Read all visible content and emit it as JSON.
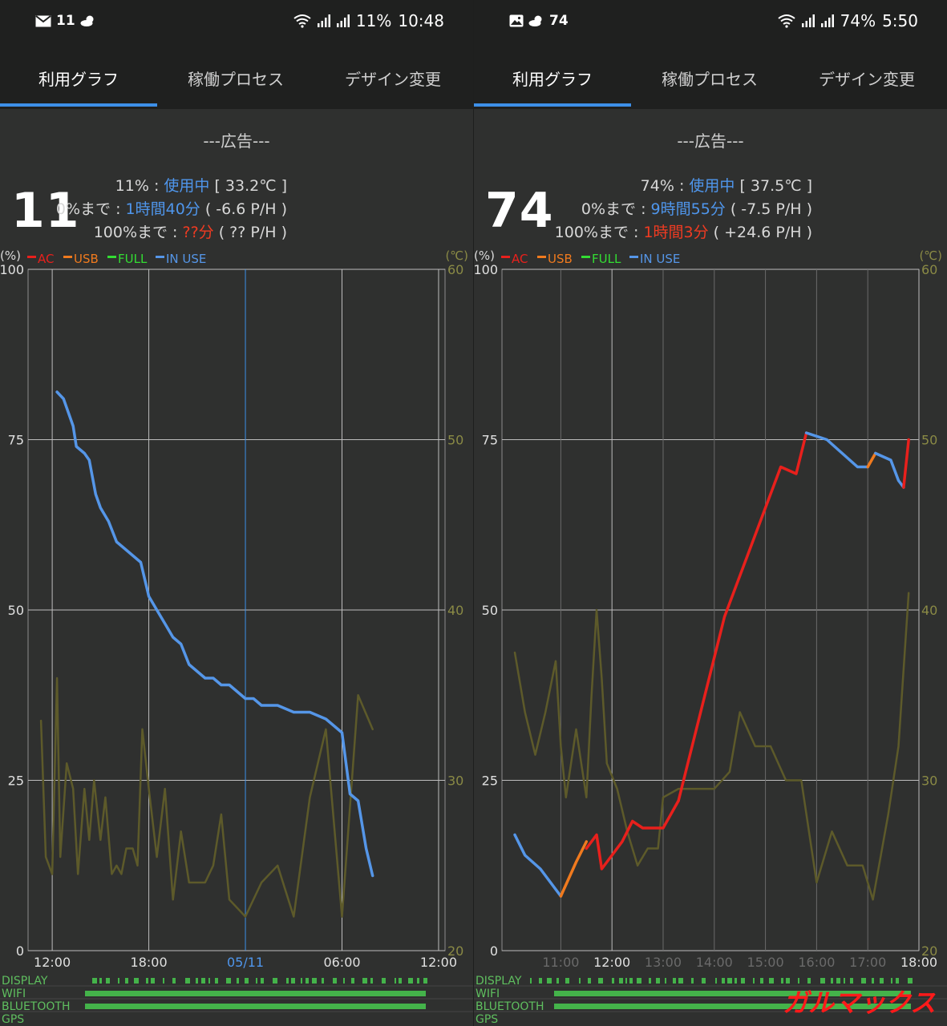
{
  "panels": [
    {
      "status": {
        "notif_count": "11",
        "battery": "11%",
        "time": "10:48"
      },
      "tabs": [
        "利用グラフ",
        "稼働プロセス",
        "デザイン変更"
      ],
      "ad": "---広告---",
      "level": "11",
      "info": {
        "line1": {
          "pct": "11%",
          "sep": " : ",
          "state": "使用中",
          "temp": " [ 33.2℃ ]"
        },
        "line2": {
          "label": "0%まで : ",
          "value": "1時間40分",
          "rate": " ( -6.6 P/H )"
        },
        "line3": {
          "label": "100%まで : ",
          "value": "??分",
          "rate": " ( ?? P/H )"
        }
      },
      "legend": {
        "left_unit": "(%)",
        "right_unit": "(℃)",
        "items": [
          "AC",
          "USB",
          "FULL",
          "IN USE"
        ]
      },
      "activity_labels": [
        "DISPLAY",
        "WIFI",
        "BLUETOOTH",
        "GPS"
      ]
    },
    {
      "status": {
        "notif_count": "74",
        "battery": "74%",
        "time": "5:50"
      },
      "tabs": [
        "利用グラフ",
        "稼働プロセス",
        "デザイン変更"
      ],
      "ad": "---広告---",
      "level": "74",
      "info": {
        "line1": {
          "pct": "74%",
          "sep": " : ",
          "state": "使用中",
          "temp": " [ 37.5℃ ]"
        },
        "line2": {
          "label": "0%まで : ",
          "value": "9時間55分",
          "rate": " ( -7.5 P/H )"
        },
        "line3": {
          "label": "100%まで : ",
          "value": "1時間3分",
          "rate": " ( +24.6 P/H )"
        }
      },
      "legend": {
        "left_unit": "(%)",
        "right_unit": "(℃)",
        "items": [
          "AC",
          "USB",
          "FULL",
          "IN USE"
        ]
      },
      "activity_labels": [
        "DISPLAY",
        "WIFI",
        "BLUETOOTH",
        "GPS"
      ]
    }
  ],
  "colors": {
    "ac": "#e8201c",
    "usb": "#f07a1e",
    "full": "#33dd33",
    "in_use": "#5596e8",
    "temp": "#5d5a2a",
    "grid": "#cfcfcf",
    "accent": "#3d8fe8"
  },
  "watermark": "ガルマックス",
  "chart_data": [
    {
      "type": "line",
      "ylim": [
        0,
        100
      ],
      "y2lim": [
        20,
        60
      ],
      "y_ticks": [
        "0",
        "25",
        "50",
        "75",
        "100"
      ],
      "y2_ticks": [
        "20",
        "30",
        "40",
        "50",
        "60"
      ],
      "x_ticks": [
        "12:00",
        "18:00",
        "05/11",
        "06:00",
        "12:00"
      ],
      "x_range_hours": [
        10,
        34
      ],
      "series": [
        {
          "name": "IN USE",
          "kind": "battery",
          "x": [
            12.3,
            12.7,
            13.0,
            13.3,
            13.5,
            14.0,
            14.3,
            14.7,
            15.0,
            15.5,
            16.0,
            16.5,
            17.0,
            17.5,
            18.0,
            18.5,
            19.0,
            19.5,
            20.0,
            20.5,
            21.0,
            21.5,
            22.0,
            22.5,
            23.0,
            23.5,
            24.0,
            24.5,
            25.0,
            26.0,
            27.0,
            28.0,
            29.0,
            29.5,
            30.0,
            30.5,
            31.0,
            31.5,
            31.9
          ],
          "y": [
            82,
            81,
            79,
            77,
            74,
            73,
            72,
            67,
            65,
            63,
            60,
            59,
            58,
            57,
            52,
            50,
            48,
            46,
            45,
            42,
            41,
            40,
            40,
            39,
            39,
            38,
            37,
            37,
            36,
            36,
            35,
            35,
            34,
            33,
            32,
            23,
            22,
            15,
            11
          ]
        },
        {
          "name": "温度",
          "kind": "temperature",
          "x": [
            11.3,
            11.6,
            12.0,
            12.3,
            12.5,
            12.9,
            13.3,
            13.6,
            14.0,
            14.3,
            14.6,
            15.0,
            15.3,
            15.7,
            16.0,
            16.3,
            16.6,
            17.0,
            17.3,
            17.6,
            18.0,
            18.5,
            19.0,
            19.5,
            20.0,
            20.5,
            21.0,
            21.5,
            22.0,
            22.5,
            23.0,
            24.0,
            25.0,
            26.0,
            27.0,
            28.0,
            29.0,
            30.0,
            31.0,
            31.9
          ],
          "y": [
            33.5,
            25.5,
            24.5,
            36,
            25.5,
            31,
            29.5,
            24.5,
            29.5,
            26.5,
            30,
            26.5,
            29,
            24.5,
            25,
            24.5,
            26,
            26,
            25,
            33,
            29.5,
            25.5,
            29.5,
            23,
            27,
            24,
            24,
            24,
            25,
            28,
            23,
            22,
            24,
            25,
            22,
            29,
            33,
            22,
            35,
            33
          ]
        }
      ]
    },
    {
      "type": "line",
      "ylim": [
        0,
        100
      ],
      "y2lim": [
        20,
        60
      ],
      "y_ticks": [
        "0",
        "25",
        "50",
        "75",
        "100"
      ],
      "y2_ticks": [
        "20",
        "30",
        "40",
        "50",
        "60"
      ],
      "x_ticks": [
        "11:00",
        "12:00",
        "13:00",
        "14:00",
        "15:00",
        "16:00",
        "17:00",
        "18:00"
      ],
      "x_range_hours": [
        10.1,
        18.0
      ],
      "series": [
        {
          "name": "IN USE",
          "kind": "battery",
          "x": [
            10.1,
            10.3,
            10.6,
            10.9,
            11.0
          ],
          "y": [
            17,
            14,
            12,
            9,
            8
          ]
        },
        {
          "name": "USB",
          "kind": "battery",
          "x": [
            11.0,
            11.3,
            11.5
          ],
          "y": [
            8,
            13,
            16
          ]
        },
        {
          "name": "AC",
          "kind": "battery",
          "x": [
            11.5,
            11.7,
            11.8,
            12.0,
            12.2,
            12.4,
            12.6,
            12.9,
            13.0,
            13.3
          ],
          "y": [
            15,
            17,
            12,
            14,
            16,
            19,
            18,
            18,
            18,
            22
          ]
        },
        {
          "name": "AC",
          "kind": "battery",
          "x": [
            13.3,
            14.2,
            14.8,
            15.3,
            15.6,
            15.8
          ],
          "y": [
            22,
            49,
            61,
            71,
            70,
            76
          ]
        },
        {
          "name": "IN USE",
          "kind": "battery",
          "x": [
            15.8,
            16.2,
            16.5,
            16.8,
            17.0
          ],
          "y": [
            76,
            75,
            73,
            71,
            71
          ]
        },
        {
          "name": "USB",
          "kind": "battery",
          "x": [
            17.0,
            17.15
          ],
          "y": [
            71,
            73
          ]
        },
        {
          "name": "IN USE",
          "kind": "battery",
          "x": [
            17.15,
            17.45,
            17.6,
            17.7
          ],
          "y": [
            73,
            72,
            69,
            68
          ]
        },
        {
          "name": "AC",
          "kind": "battery",
          "x": [
            17.7,
            17.8
          ],
          "y": [
            68,
            75
          ]
        },
        {
          "name": "温度",
          "kind": "temperature",
          "x": [
            10.1,
            10.3,
            10.5,
            10.7,
            10.9,
            11.0,
            11.1,
            11.3,
            11.5,
            11.6,
            11.7,
            11.8,
            11.9,
            12.1,
            12.3,
            12.5,
            12.7,
            12.9,
            13.0,
            13.3,
            13.6,
            14.0,
            14.3,
            14.5,
            14.8,
            15.1,
            15.4,
            15.7,
            16.0,
            16.3,
            16.6,
            16.9,
            17.1,
            17.4,
            17.6,
            17.8
          ],
          "y": [
            37.5,
            34,
            31.5,
            34,
            37,
            32,
            29,
            33,
            29,
            35,
            40,
            36,
            31,
            29.5,
            27,
            25,
            26,
            26,
            29,
            29.5,
            29.5,
            29.5,
            30.5,
            34,
            32,
            32,
            30,
            30,
            24,
            27,
            25,
            25,
            23,
            28,
            32,
            41
          ]
        }
      ]
    }
  ]
}
